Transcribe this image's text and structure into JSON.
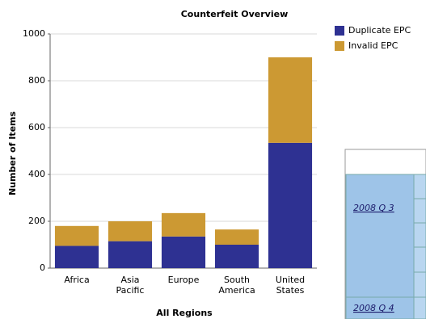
{
  "chart_data": {
    "type": "stacked_bar",
    "title": "Counterfeit Overview",
    "x_label": "All Regions",
    "y_label": "Number of Items",
    "categories": [
      "Africa",
      "Asia Pacific",
      "Europe",
      "South America",
      "United States"
    ],
    "series": [
      {
        "name": "Duplicate EPC",
        "color": "#2e3192",
        "values": [
          95,
          115,
          135,
          100,
          535
        ]
      },
      {
        "name": "Invalid EPC",
        "color": "#cc9933",
        "values": [
          85,
          85,
          100,
          65,
          365
        ]
      }
    ],
    "ylim": [
      0,
      1000
    ],
    "yticks": [
      0,
      200,
      400,
      600,
      800,
      1000
    ],
    "grid": true,
    "legend": "right"
  },
  "table": {
    "rows": [
      "2008 Q 3",
      "2008 Q 4"
    ]
  }
}
